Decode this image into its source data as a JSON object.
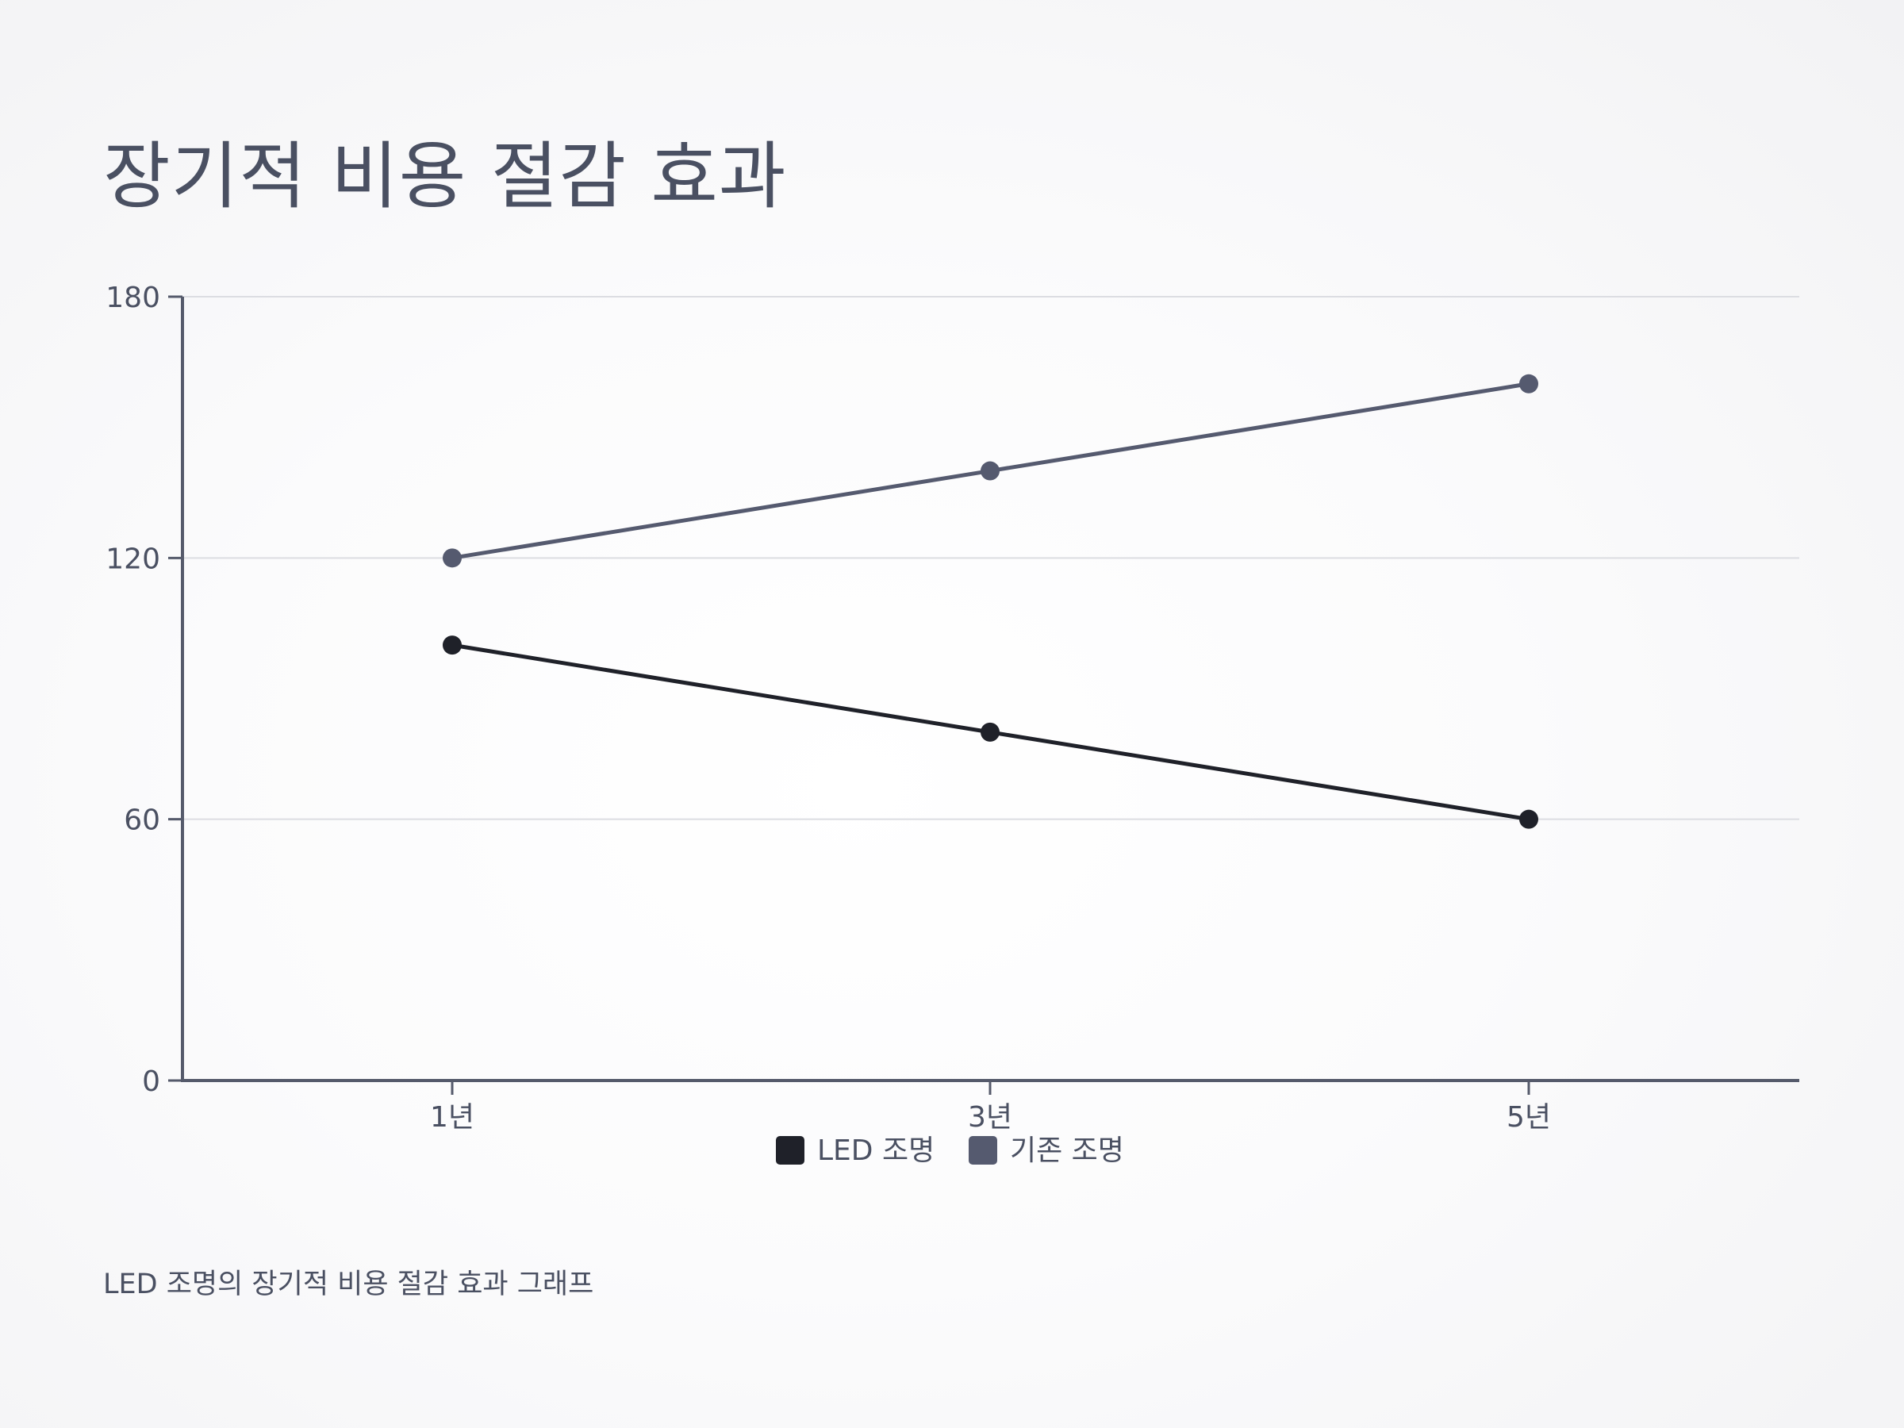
{
  "title": "장기적 비용 절감 효과",
  "caption": "LED 조명의 장기적 비용 절감 효과 그래프",
  "colors": {
    "axis": "#555a6b",
    "grid": "#dcdde2",
    "text": "#4a5062"
  },
  "chart_data": {
    "type": "line",
    "title": "장기적 비용 절감 효과",
    "xlabel": "",
    "ylabel": "",
    "categories": [
      "1년",
      "3년",
      "5년"
    ],
    "ylim": [
      0,
      180
    ],
    "yticks": [
      0,
      60,
      120,
      180
    ],
    "grid": true,
    "legend_position": "bottom",
    "series": [
      {
        "name": "LED 조명",
        "values": [
          100,
          80,
          60
        ],
        "color": "#1f2129"
      },
      {
        "name": "기존 조명",
        "values": [
          120,
          140,
          160
        ],
        "color": "#555a6f"
      }
    ]
  }
}
